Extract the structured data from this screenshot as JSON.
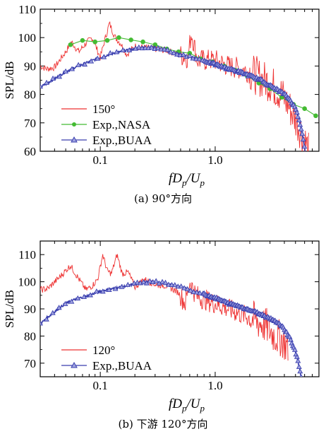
{
  "chart_data": [
    {
      "type": "line",
      "caption": "(a) 90°方向",
      "ylabel": "SPL/dB",
      "xlabel": {
        "base": "fD",
        "sub1": "p",
        "mid": "/U",
        "sub2": "p"
      },
      "xscale": "log",
      "xlim": [
        0.03,
        8
      ],
      "ylim": [
        60,
        110
      ],
      "yticks": [
        60,
        70,
        80,
        90,
        100,
        110
      ],
      "xticks": [
        {
          "value": 0.1,
          "label": "0.1"
        },
        {
          "value": 1.0,
          "label": "1.0"
        }
      ],
      "legend_position": "bottom-left",
      "series": [
        {
          "name": "150°",
          "color": "#ee3333",
          "marker": "none",
          "kind": "noisy",
          "x": [
            0.03,
            0.034,
            0.04,
            0.05,
            0.056,
            0.065,
            0.075,
            0.085,
            0.1,
            0.11,
            0.12,
            0.135,
            0.15,
            0.17,
            0.2,
            0.24,
            0.3,
            0.38,
            0.48,
            0.58,
            0.62,
            0.7,
            0.85,
            1.0,
            1.3,
            1.7,
            2.2,
            3.0,
            3.8,
            4.5,
            5.2,
            6.0,
            6.5
          ],
          "y": [
            90,
            89,
            89.5,
            95,
            98.5,
            95,
            98,
            100,
            93,
            99.5,
            105,
            100,
            98,
            94,
            97,
            96.5,
            96,
            95.5,
            94,
            93,
            102,
            92,
            92,
            92,
            90,
            89,
            87,
            84,
            80,
            75,
            70,
            64,
            60
          ]
        },
        {
          "name": "Exp.,NASA",
          "color": "#44bb33",
          "marker": "circle",
          "kind": "smooth",
          "x": [
            0.055,
            0.07,
            0.09,
            0.115,
            0.145,
            0.185,
            0.235,
            0.3,
            0.38,
            0.48,
            0.6,
            0.75,
            0.95,
            1.2,
            1.5,
            1.9,
            2.4,
            3.0,
            3.8,
            4.8,
            6.0,
            7.5
          ],
          "y": [
            97.5,
            99,
            98.5,
            99,
            100,
            99.2,
            98.5,
            97.5,
            96,
            95,
            94.5,
            92.5,
            91.5,
            90,
            88.5,
            86.5,
            84,
            82,
            79,
            76.5,
            75,
            72.5
          ]
        },
        {
          "name": "Exp.,BUAA",
          "color": "#3a3fae",
          "marker": "triangle",
          "kind": "dense",
          "x": [
            0.03,
            0.04,
            0.05,
            0.06,
            0.08,
            0.1,
            0.13,
            0.17,
            0.22,
            0.28,
            0.35,
            0.45,
            0.55,
            0.7,
            0.85,
            1.0,
            1.3,
            1.6,
            2.0,
            2.5,
            3.0,
            3.5,
            4.0,
            4.5,
            5.0,
            5.3,
            5.6,
            5.9,
            6.1
          ],
          "y": [
            82.5,
            85.5,
            88,
            89.5,
            91.5,
            93,
            94.5,
            95.5,
            96.3,
            96.5,
            95.8,
            94.5,
            93.5,
            92.5,
            91.5,
            90.5,
            89,
            88,
            86.5,
            85,
            83,
            81.5,
            80,
            78,
            75,
            72,
            68,
            63,
            59
          ]
        }
      ]
    },
    {
      "type": "line",
      "caption": "(b) 下游 120°方向",
      "ylabel": "SPL/dB",
      "xlabel": {
        "base": "fD",
        "sub1": "p",
        "mid": "/U",
        "sub2": "p"
      },
      "xscale": "log",
      "xlim": [
        0.03,
        8
      ],
      "ylim": [
        65,
        115
      ],
      "yticks": [
        70,
        80,
        90,
        100,
        110
      ],
      "xticks": [
        {
          "value": 0.1,
          "label": "0.1"
        },
        {
          "value": 1.0,
          "label": "1.0"
        }
      ],
      "legend_position": "bottom-left",
      "series": [
        {
          "name": "120°",
          "color": "#ee3333",
          "marker": "none",
          "kind": "noisy",
          "x": [
            0.03,
            0.035,
            0.045,
            0.055,
            0.065,
            0.075,
            0.085,
            0.095,
            0.105,
            0.115,
            0.125,
            0.14,
            0.155,
            0.175,
            0.2,
            0.24,
            0.3,
            0.38,
            0.48,
            0.55,
            0.6,
            0.68,
            0.8,
            1.0,
            1.3,
            1.7,
            2.2,
            2.8,
            3.3,
            3.8,
            4.3
          ],
          "y": [
            97,
            97.5,
            102,
            106,
            101,
            97,
            98.5,
            101,
            110,
            104,
            103,
            110,
            103,
            103.5,
            98,
            101,
            99,
            98.5,
            96,
            92,
            100,
            95,
            93.5,
            92,
            90,
            88,
            86,
            83.5,
            80,
            79,
            75.5
          ]
        },
        {
          "name": "Exp.,BUAA",
          "color": "#3a3fae",
          "marker": "triangle",
          "kind": "dense",
          "x": [
            0.03,
            0.04,
            0.05,
            0.06,
            0.08,
            0.1,
            0.13,
            0.17,
            0.22,
            0.28,
            0.35,
            0.45,
            0.55,
            0.7,
            0.85,
            1.0,
            1.3,
            1.6,
            2.0,
            2.5,
            3.0,
            3.5,
            4.0,
            4.5,
            5.0,
            5.3,
            5.6
          ],
          "y": [
            84.5,
            89,
            92,
            93.5,
            95,
            96.5,
            97.5,
            98.5,
            99.5,
            100,
            99.5,
            98.5,
            97.5,
            96,
            95,
            94,
            92,
            91,
            89.5,
            88,
            86.5,
            85,
            82.5,
            79,
            74,
            70,
            65
          ]
        }
      ]
    }
  ]
}
